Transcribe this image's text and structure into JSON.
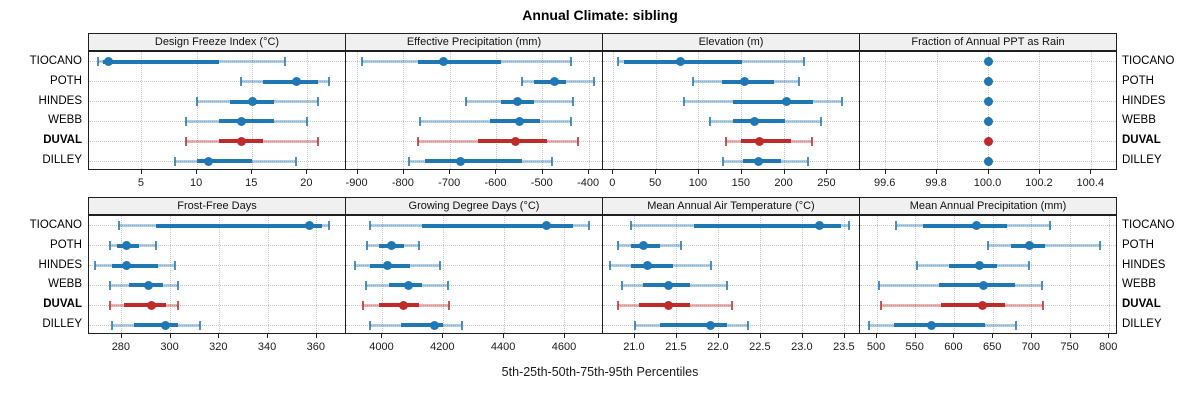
{
  "title": "Annual Climate: sibling",
  "caption": "5th-25th-50th-75th-95th Percentiles",
  "stations": [
    "TIOCANO",
    "POTH",
    "HINDES",
    "WEBB",
    "DUVAL",
    "DILLEY"
  ],
  "highlight_station": "DUVAL",
  "colors": {
    "series": "#1f77b4",
    "series_light": "rgba(31,119,180,0.35)",
    "series_cap": "rgba(31,119,180,0.8)",
    "highlight": "#bf2b2b",
    "highlight_light": "rgba(191,43,43,0.35)",
    "highlight_cap": "rgba(191,43,43,0.8)",
    "strip_bg": "#f0f0f0",
    "border": "#1f1f1f",
    "grid": "#c8c8c8"
  },
  "chart_data": {
    "type": "scatter",
    "subtype": "percentile-dotplot",
    "percentiles": [
      "5th",
      "25th",
      "50th",
      "75th",
      "95th"
    ],
    "legend_position": "none",
    "grid": true,
    "layout": {
      "rows": 2,
      "cols": 4
    },
    "panels": [
      {
        "title": "Design Freeze Index (°C)",
        "xlim": [
          0.2,
          23.5
        ],
        "ticks": [
          5,
          10,
          15,
          20
        ],
        "tick_labels": [
          "5",
          "10",
          "15",
          "20"
        ],
        "values": {
          "TIOCANO": [
            1,
            1.5,
            2,
            12,
            18
          ],
          "POTH": [
            14,
            16,
            19,
            21,
            22
          ],
          "HINDES": [
            10,
            13,
            15,
            17,
            21
          ],
          "WEBB": [
            9,
            12,
            14,
            17,
            20
          ],
          "DUVAL": [
            9,
            12,
            14,
            16,
            21
          ],
          "DILLEY": [
            8,
            10,
            11,
            15,
            19
          ]
        }
      },
      {
        "title": "Effective Precipitation (mm)",
        "xlim": [
          -925,
          -370
        ],
        "ticks": [
          -900,
          -800,
          -700,
          -600,
          -500,
          -400
        ],
        "tick_labels": [
          "-900",
          "-800",
          "-700",
          "-600",
          "-500",
          "-400"
        ],
        "values": {
          "TIOCANO": [
            -890,
            -770,
            -715,
            -590,
            -440
          ],
          "POTH": [
            -545,
            -520,
            -475,
            -450,
            -390
          ],
          "HINDES": [
            -665,
            -590,
            -555,
            -520,
            -435
          ],
          "WEBB": [
            -765,
            -615,
            -550,
            -505,
            -440
          ],
          "DUVAL": [
            -770,
            -640,
            -558,
            -490,
            -425
          ],
          "DILLEY": [
            -790,
            -755,
            -678,
            -545,
            -480
          ]
        }
      },
      {
        "title": "Elevation (m)",
        "xlim": [
          -12,
          288
        ],
        "ticks": [
          0,
          50,
          100,
          150,
          200,
          250
        ],
        "tick_labels": [
          "0",
          "50",
          "100",
          "150",
          "200",
          "250"
        ],
        "values": {
          "TIOCANO": [
            5,
            13,
            78,
            150,
            223
          ],
          "POTH": [
            93,
            127,
            153,
            188,
            217
          ],
          "HINDES": [
            83,
            140,
            202,
            233,
            267
          ],
          "WEBB": [
            113,
            140,
            165,
            200,
            243
          ],
          "DUVAL": [
            132,
            149,
            171,
            207,
            232
          ],
          "DILLEY": [
            128,
            152,
            170,
            196,
            227
          ]
        }
      },
      {
        "title": "Fraction of Annual PPT as Rain",
        "xlim": [
          99.5,
          100.5
        ],
        "ticks": [
          99.6,
          99.8,
          100.0,
          100.2,
          100.4
        ],
        "tick_labels": [
          "99.6",
          "99.8",
          "100.0",
          "100.2",
          "100.4"
        ],
        "values": {
          "TIOCANO": [
            100,
            100,
            100,
            100,
            100
          ],
          "POTH": [
            100,
            100,
            100,
            100,
            100
          ],
          "HINDES": [
            100,
            100,
            100,
            100,
            100
          ],
          "WEBB": [
            100,
            100,
            100,
            100,
            100
          ],
          "DUVAL": [
            100,
            100,
            100,
            100,
            100
          ],
          "DILLEY": [
            100,
            100,
            100,
            100,
            100
          ]
        }
      },
      {
        "title": "Frost-Free Days",
        "xlim": [
          266.5,
          372
        ],
        "ticks": [
          280,
          300,
          320,
          340,
          360
        ],
        "tick_labels": [
          "280",
          "300",
          "320",
          "340",
          "360"
        ],
        "values": {
          "TIOCANO": [
            279,
            294,
            357,
            362,
            365
          ],
          "POTH": [
            275,
            278,
            282,
            287,
            294
          ],
          "HINDES": [
            269,
            276,
            282,
            295,
            302
          ],
          "WEBB": [
            275,
            283,
            291,
            297,
            303
          ],
          "DUVAL": [
            275,
            281,
            292,
            298,
            303
          ],
          "DILLEY": [
            276,
            285,
            298,
            303,
            312
          ]
        }
      },
      {
        "title": "Growing Degree Days (°C)",
        "xlim": [
          3880,
          4725
        ],
        "ticks": [
          4000,
          4200,
          4400,
          4600
        ],
        "tick_labels": [
          "4000",
          "4200",
          "4400",
          "4600"
        ],
        "values": {
          "TIOCANO": [
            3960,
            4130,
            4540,
            4625,
            4680
          ],
          "POTH": [
            3950,
            3990,
            4030,
            4070,
            4120
          ],
          "HINDES": [
            3910,
            3960,
            4015,
            4090,
            4190
          ],
          "WEBB": [
            3945,
            4020,
            4085,
            4130,
            4215
          ],
          "DUVAL": [
            3935,
            3990,
            4070,
            4120,
            4220
          ],
          "DILLEY": [
            3960,
            4060,
            4170,
            4200,
            4260
          ]
        }
      },
      {
        "title": "Mean Annual Air Temperature (°C)",
        "xlim": [
          20.62,
          23.68
        ],
        "ticks": [
          21.0,
          21.5,
          22.0,
          22.5,
          23.0,
          23.5
        ],
        "tick_labels": [
          "21.0",
          "21.5",
          "22.0",
          "22.5",
          "23.0",
          "23.5"
        ],
        "values": {
          "TIOCANO": [
            20.95,
            21.7,
            23.2,
            23.45,
            23.55
          ],
          "POTH": [
            20.8,
            20.95,
            21.1,
            21.3,
            21.55
          ],
          "HINDES": [
            20.7,
            20.95,
            21.15,
            21.45,
            21.9
          ],
          "WEBB": [
            20.85,
            21.1,
            21.4,
            21.65,
            22.1
          ],
          "DUVAL": [
            20.8,
            21.05,
            21.4,
            21.65,
            22.15
          ],
          "DILLEY": [
            21.0,
            21.3,
            21.9,
            22.1,
            22.35
          ]
        }
      },
      {
        "title": "Mean Annual Precipitation (mm)",
        "xlim": [
          478,
          810
        ],
        "ticks": [
          500,
          550,
          600,
          650,
          700,
          750,
          800
        ],
        "tick_labels": [
          "500",
          "550",
          "600",
          "650",
          "700",
          "750",
          "800"
        ],
        "values": {
          "TIOCANO": [
            525,
            560,
            628,
            668,
            723
          ],
          "POTH": [
            643,
            673,
            697,
            717,
            788
          ],
          "HINDES": [
            551,
            593,
            633,
            655,
            696
          ],
          "WEBB": [
            503,
            580,
            638,
            678,
            713
          ],
          "DUVAL": [
            505,
            583,
            636,
            665,
            714
          ],
          "DILLEY": [
            490,
            522,
            570,
            640,
            680
          ]
        }
      }
    ]
  }
}
